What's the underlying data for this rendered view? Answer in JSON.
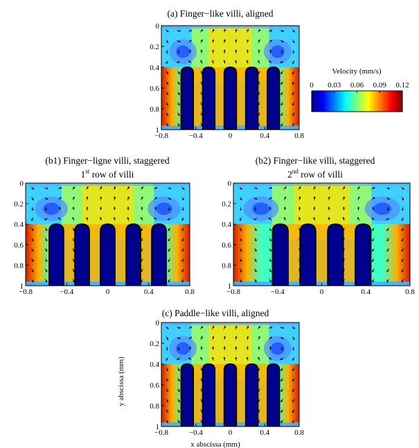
{
  "chart_data": [
    {
      "type": "heatmap",
      "id": "a",
      "title": "(a) Finger−like villi, aligned",
      "subtitle": "",
      "xlabel": "",
      "ylabel": "",
      "xlim": [
        -0.8,
        0.8
      ],
      "ylim": [
        0,
        1
      ],
      "y_axis_inverted": true,
      "x_ticks": [
        "−0.8",
        "−0.4",
        "0",
        "0.4",
        "0.8"
      ],
      "y_ticks": [
        "0",
        "0.2",
        "0.4",
        "0.6",
        "0.8",
        "1"
      ],
      "villi_x_centers": [
        -0.5,
        -0.25,
        0,
        0.25,
        0.5
      ],
      "villi_tip_y": 0.4,
      "villus_color": "#00008f"
    },
    {
      "type": "heatmap",
      "id": "b1",
      "title": "(b1) Finger−ligne villi, staggered",
      "subtitle_prefix": "1",
      "subtitle_sup": "st",
      "subtitle_suffix": " row of villi",
      "xlabel": "",
      "ylabel": "",
      "xlim": [
        -0.8,
        0.8
      ],
      "ylim": [
        0,
        1
      ],
      "y_axis_inverted": true,
      "x_ticks": [
        "−0.8",
        "−0.4",
        "0",
        "0.4",
        "0.8"
      ],
      "y_ticks": [
        "0",
        "0.2",
        "0.4",
        "0.6",
        "0.8",
        "1"
      ],
      "villi_x_centers": [
        -0.5,
        -0.25,
        0,
        0.25,
        0.5
      ],
      "villi_tip_y": 0.4,
      "villus_color": "#00008f"
    },
    {
      "type": "heatmap",
      "id": "b2",
      "title": "(b2) Finger−like villi, staggered",
      "subtitle_prefix": "2",
      "subtitle_sup": "nd",
      "subtitle_suffix": " row of villi",
      "xlabel": "",
      "ylabel": "",
      "xlim": [
        -0.8,
        0.8
      ],
      "ylim": [
        0,
        1
      ],
      "y_axis_inverted": true,
      "x_ticks": [
        "−0.8",
        "−0.4",
        "0",
        "0.4",
        "0.8"
      ],
      "y_ticks": [
        "0",
        "0.2",
        "0.4",
        "0.6",
        "0.8",
        "1"
      ],
      "villi_x_centers": [
        -0.375,
        -0.125,
        0.125,
        0.375
      ],
      "villi_tip_y": 0.4,
      "villus_color": "#00008f"
    },
    {
      "type": "heatmap",
      "id": "c",
      "title": "(c) Paddle−like villi, aligned",
      "subtitle": "",
      "xlabel": "x abscissa (mm)",
      "ylabel": "y abscissa (mm)",
      "xlim": [
        -0.8,
        0.8
      ],
      "ylim": [
        0,
        1
      ],
      "y_axis_inverted": true,
      "x_ticks": [
        "−0.8",
        "−0.4",
        "0",
        "0.4",
        "0.8"
      ],
      "y_ticks": [
        "0",
        "0.2",
        "0.4",
        "0.6",
        "0.8",
        "1"
      ],
      "villi_x_centers": [
        -0.5,
        -0.25,
        0,
        0.25,
        0.5
      ],
      "villi_tip_y": 0.4,
      "villus_color": "#00008f"
    }
  ],
  "colorbar": {
    "title": "Velocity (mm/s)",
    "ticks": [
      "0",
      "0.03",
      "0.06",
      "0.09",
      "0.12"
    ],
    "range": [
      0,
      0.12
    ],
    "colormap": "jet",
    "stops": [
      "#00008f",
      "#0000ff",
      "#007fff",
      "#00ffff",
      "#7fff7f",
      "#ffff00",
      "#ff7f00",
      "#ff0000",
      "#7f0000"
    ]
  }
}
